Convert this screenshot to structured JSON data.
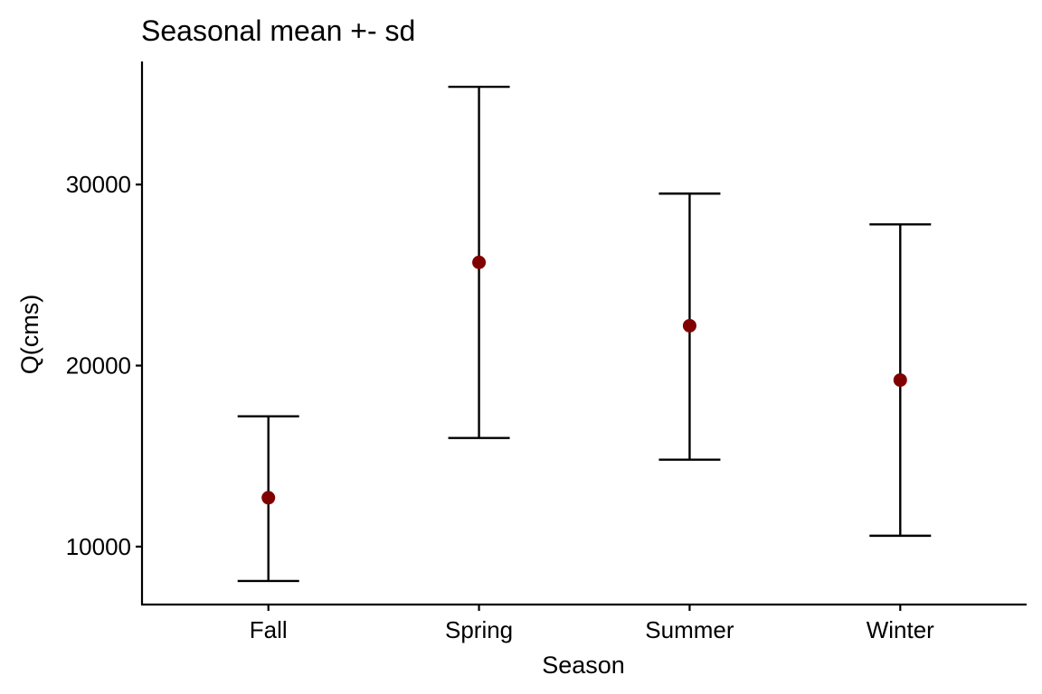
{
  "chart_data": {
    "type": "scatter",
    "title": "Seasonal mean +- sd",
    "xlabel": "Season",
    "ylabel": "Q(cms)",
    "categories": [
      "Fall",
      "Spring",
      "Summer",
      "Winter"
    ],
    "series": [
      {
        "mean": [
          12700,
          25700,
          22200,
          19200
        ],
        "lower": [
          8100,
          16000,
          14800,
          10600
        ],
        "upper": [
          17200,
          35400,
          29500,
          27800
        ]
      }
    ],
    "yticks": [
      10000,
      20000,
      30000
    ],
    "ytick_labels": [
      "10000",
      "20000",
      "30000"
    ],
    "ylim": [
      6800,
      36800
    ],
    "grid": false,
    "legend": "none",
    "colors": {
      "point": "#800000",
      "errorbar": "#000000",
      "axis": "#000000"
    }
  }
}
